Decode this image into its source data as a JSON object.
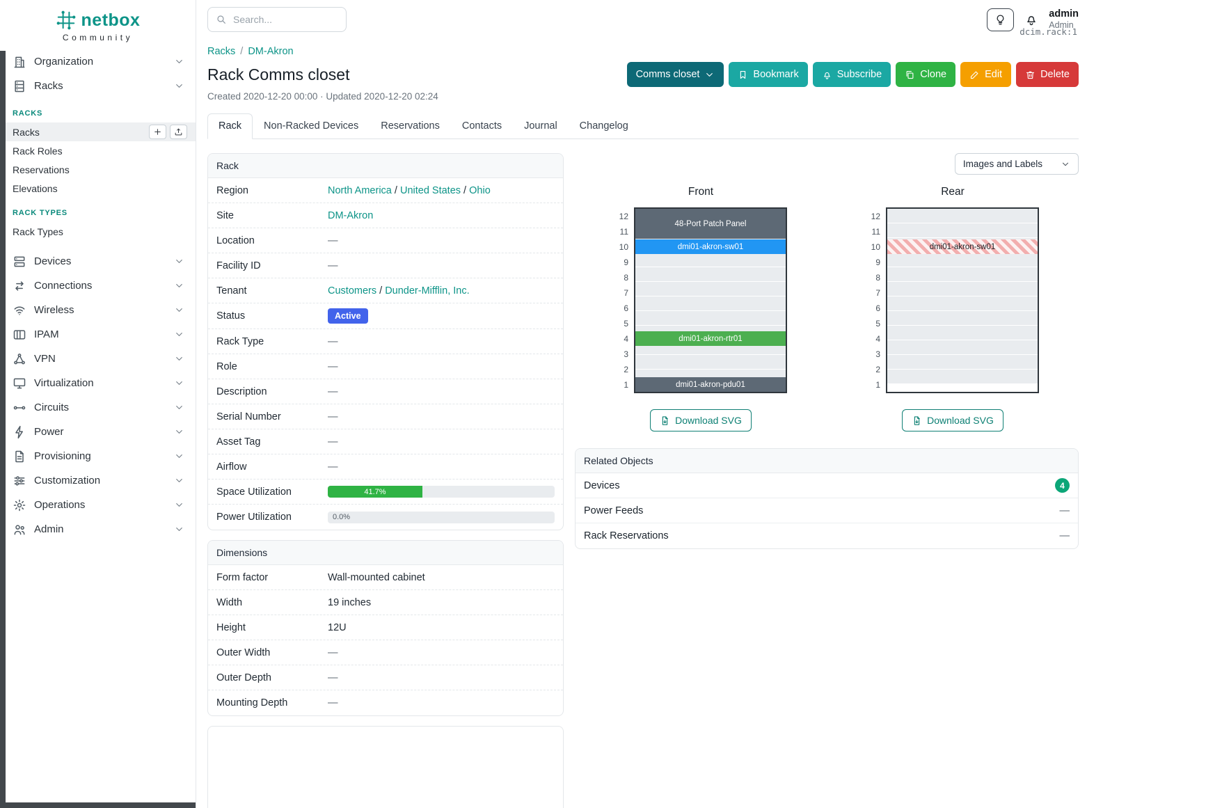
{
  "colors": {
    "accent_teal": "#0d9488",
    "sidebar_section_header": "#0b8a7c",
    "card_header_bg": "#f7f9fa"
  },
  "sidebar": {
    "brand": "netbox",
    "brand_sub": "Community",
    "nav": [
      {
        "label": "Organization",
        "icon": "organization-icon"
      },
      {
        "label": "Racks",
        "icon": "racks-icon",
        "expanded": true,
        "submenu": {
          "sections": [
            {
              "header": "RACKS",
              "links": [
                {
                  "label": "Racks",
                  "active": true,
                  "buttons": [
                    "plus-icon",
                    "import-icon"
                  ]
                },
                {
                  "label": "Rack Roles"
                },
                {
                  "label": "Reservations"
                },
                {
                  "label": "Elevations"
                }
              ]
            },
            {
              "header": "RACK TYPES",
              "links": [
                {
                  "label": "Rack Types"
                }
              ]
            }
          ]
        }
      },
      {
        "label": "Devices",
        "icon": "devices-icon"
      },
      {
        "label": "Connections",
        "icon": "connections-icon"
      },
      {
        "label": "Wireless",
        "icon": "wireless-icon"
      },
      {
        "label": "IPAM",
        "icon": "ipam-icon"
      },
      {
        "label": "VPN",
        "icon": "vpn-icon"
      },
      {
        "label": "Virtualization",
        "icon": "virtualization-icon"
      },
      {
        "label": "Circuits",
        "icon": "circuits-icon"
      },
      {
        "label": "Power",
        "icon": "power-icon"
      },
      {
        "label": "Provisioning",
        "icon": "provisioning-icon"
      },
      {
        "label": "Customization",
        "icon": "customization-icon"
      },
      {
        "label": "Operations",
        "icon": "operations-icon"
      },
      {
        "label": "Admin",
        "icon": "admin-icon"
      }
    ]
  },
  "topbar": {
    "search_placeholder": "Search...",
    "icons": [
      "search-icon",
      "lightbulb-icon",
      "bell-icon"
    ],
    "user": {
      "name": "admin",
      "role": "Admin"
    }
  },
  "page": {
    "breadcrumb": [
      {
        "label": "Racks"
      },
      {
        "label": "DM-Akron"
      }
    ],
    "object_ref": "dcim.rack:1",
    "title": "Rack Comms closet",
    "meta": "Created 2020-12-20 00:00 · Updated 2020-12-20 02:24",
    "actions": [
      {
        "name": "rack-select-dropdown",
        "label": "Comms closet",
        "icon": "chevron-down-icon",
        "icon_after": true,
        "bg": "#0d6976",
        "fg": "#ffffff"
      },
      {
        "name": "bookmark-button",
        "label": "Bookmark",
        "icon": "bookmark-icon",
        "bg": "#1ba8a3",
        "fg": "#ffffff"
      },
      {
        "name": "subscribe-button",
        "label": "Subscribe",
        "icon": "bell-plus-icon",
        "bg": "#1ba8a3",
        "fg": "#ffffff"
      },
      {
        "name": "clone-button",
        "label": "Clone",
        "icon": "copy-icon",
        "bg": "#2fb344",
        "fg": "#ffffff"
      },
      {
        "name": "edit-button",
        "label": "Edit",
        "icon": "pencil-icon",
        "bg": "#f59f00",
        "fg": "#ffffff"
      },
      {
        "name": "delete-button",
        "label": "Delete",
        "icon": "trash-icon",
        "bg": "#d63939",
        "fg": "#ffffff"
      }
    ],
    "tabs": [
      {
        "label": "Rack",
        "active": true
      },
      {
        "label": "Non-Racked Devices"
      },
      {
        "label": "Reservations"
      },
      {
        "label": "Contacts"
      },
      {
        "label": "Journal"
      },
      {
        "label": "Changelog"
      }
    ]
  },
  "rack_card": {
    "title": "Rack",
    "rows": [
      {
        "label": "Region",
        "type": "links",
        "links": [
          "North America",
          "United States",
          "Ohio"
        ]
      },
      {
        "label": "Site",
        "type": "links",
        "links": [
          "DM-Akron"
        ]
      },
      {
        "label": "Location",
        "type": "dash",
        "value": "—"
      },
      {
        "label": "Facility ID",
        "type": "dash",
        "value": "—"
      },
      {
        "label": "Tenant",
        "type": "links",
        "links": [
          "Customers",
          "Dunder-Mifflin, Inc."
        ]
      },
      {
        "label": "Status",
        "type": "badge",
        "value": "Active",
        "color": "#4263eb"
      },
      {
        "label": "Rack Type",
        "type": "dash",
        "value": "—"
      },
      {
        "label": "Role",
        "type": "dash",
        "value": "—"
      },
      {
        "label": "Description",
        "type": "dash",
        "value": "—"
      },
      {
        "label": "Serial Number",
        "type": "dash",
        "value": "—"
      },
      {
        "label": "Asset Tag",
        "type": "dash",
        "value": "—"
      },
      {
        "label": "Airflow",
        "type": "dash",
        "value": "—"
      },
      {
        "label": "Space Utilization",
        "type": "progress",
        "value": 41.7,
        "display": "41.7%",
        "color": "#2fb344"
      },
      {
        "label": "Power Utilization",
        "type": "progress",
        "value": 0.0,
        "display": "0.0%",
        "color": "#2fb344"
      }
    ]
  },
  "dimensions_card": {
    "title": "Dimensions",
    "rows": [
      {
        "label": "Form factor",
        "type": "text",
        "value": "Wall-mounted cabinet"
      },
      {
        "label": "Width",
        "type": "text",
        "value": "19 inches"
      },
      {
        "label": "Height",
        "type": "text",
        "value": "12U"
      },
      {
        "label": "Outer Width",
        "type": "dash",
        "value": "—"
      },
      {
        "label": "Outer Depth",
        "type": "dash",
        "value": "—"
      },
      {
        "label": "Mounting Depth",
        "type": "dash",
        "value": "—"
      }
    ]
  },
  "elevations": {
    "view_select_value": "Images and Labels",
    "download_label": "Download SVG",
    "unit_count": 12,
    "hatch": {
      "stripe": "#f2aeae",
      "bg": "#fcf2f2"
    },
    "front": {
      "title": "Front",
      "devices": [
        {
          "name": "48-Port Patch Panel",
          "top_unit": 12,
          "u_height": 2,
          "color": "#5d6975",
          "text_color": "#ffffff"
        },
        {
          "name": "dmi01-akron-sw01",
          "top_unit": 10,
          "u_height": 1,
          "color": "#2196f3",
          "text_color": "#ffffff"
        },
        {
          "name": "dmi01-akron-rtr01",
          "top_unit": 4,
          "u_height": 1,
          "color": "#4caf50",
          "text_color": "#ffffff"
        },
        {
          "name": "dmi01-akron-pdu01",
          "top_unit": 1,
          "u_height": 1,
          "color": "#5d6975",
          "text_color": "#ffffff"
        }
      ]
    },
    "rear": {
      "title": "Rear",
      "devices": [
        {
          "name": "dmi01-akron-sw01",
          "top_unit": 10,
          "u_height": 1,
          "hatched": true,
          "text_color": "#212529"
        }
      ]
    }
  },
  "related_objects": {
    "title": "Related Objects",
    "rows": [
      {
        "label": "Devices",
        "type": "count",
        "count": 4,
        "badge_color": "#0ca678"
      },
      {
        "label": "Power Feeds",
        "type": "dash",
        "value": "—"
      },
      {
        "label": "Rack Reservations",
        "type": "dash",
        "value": "—"
      }
    ]
  }
}
